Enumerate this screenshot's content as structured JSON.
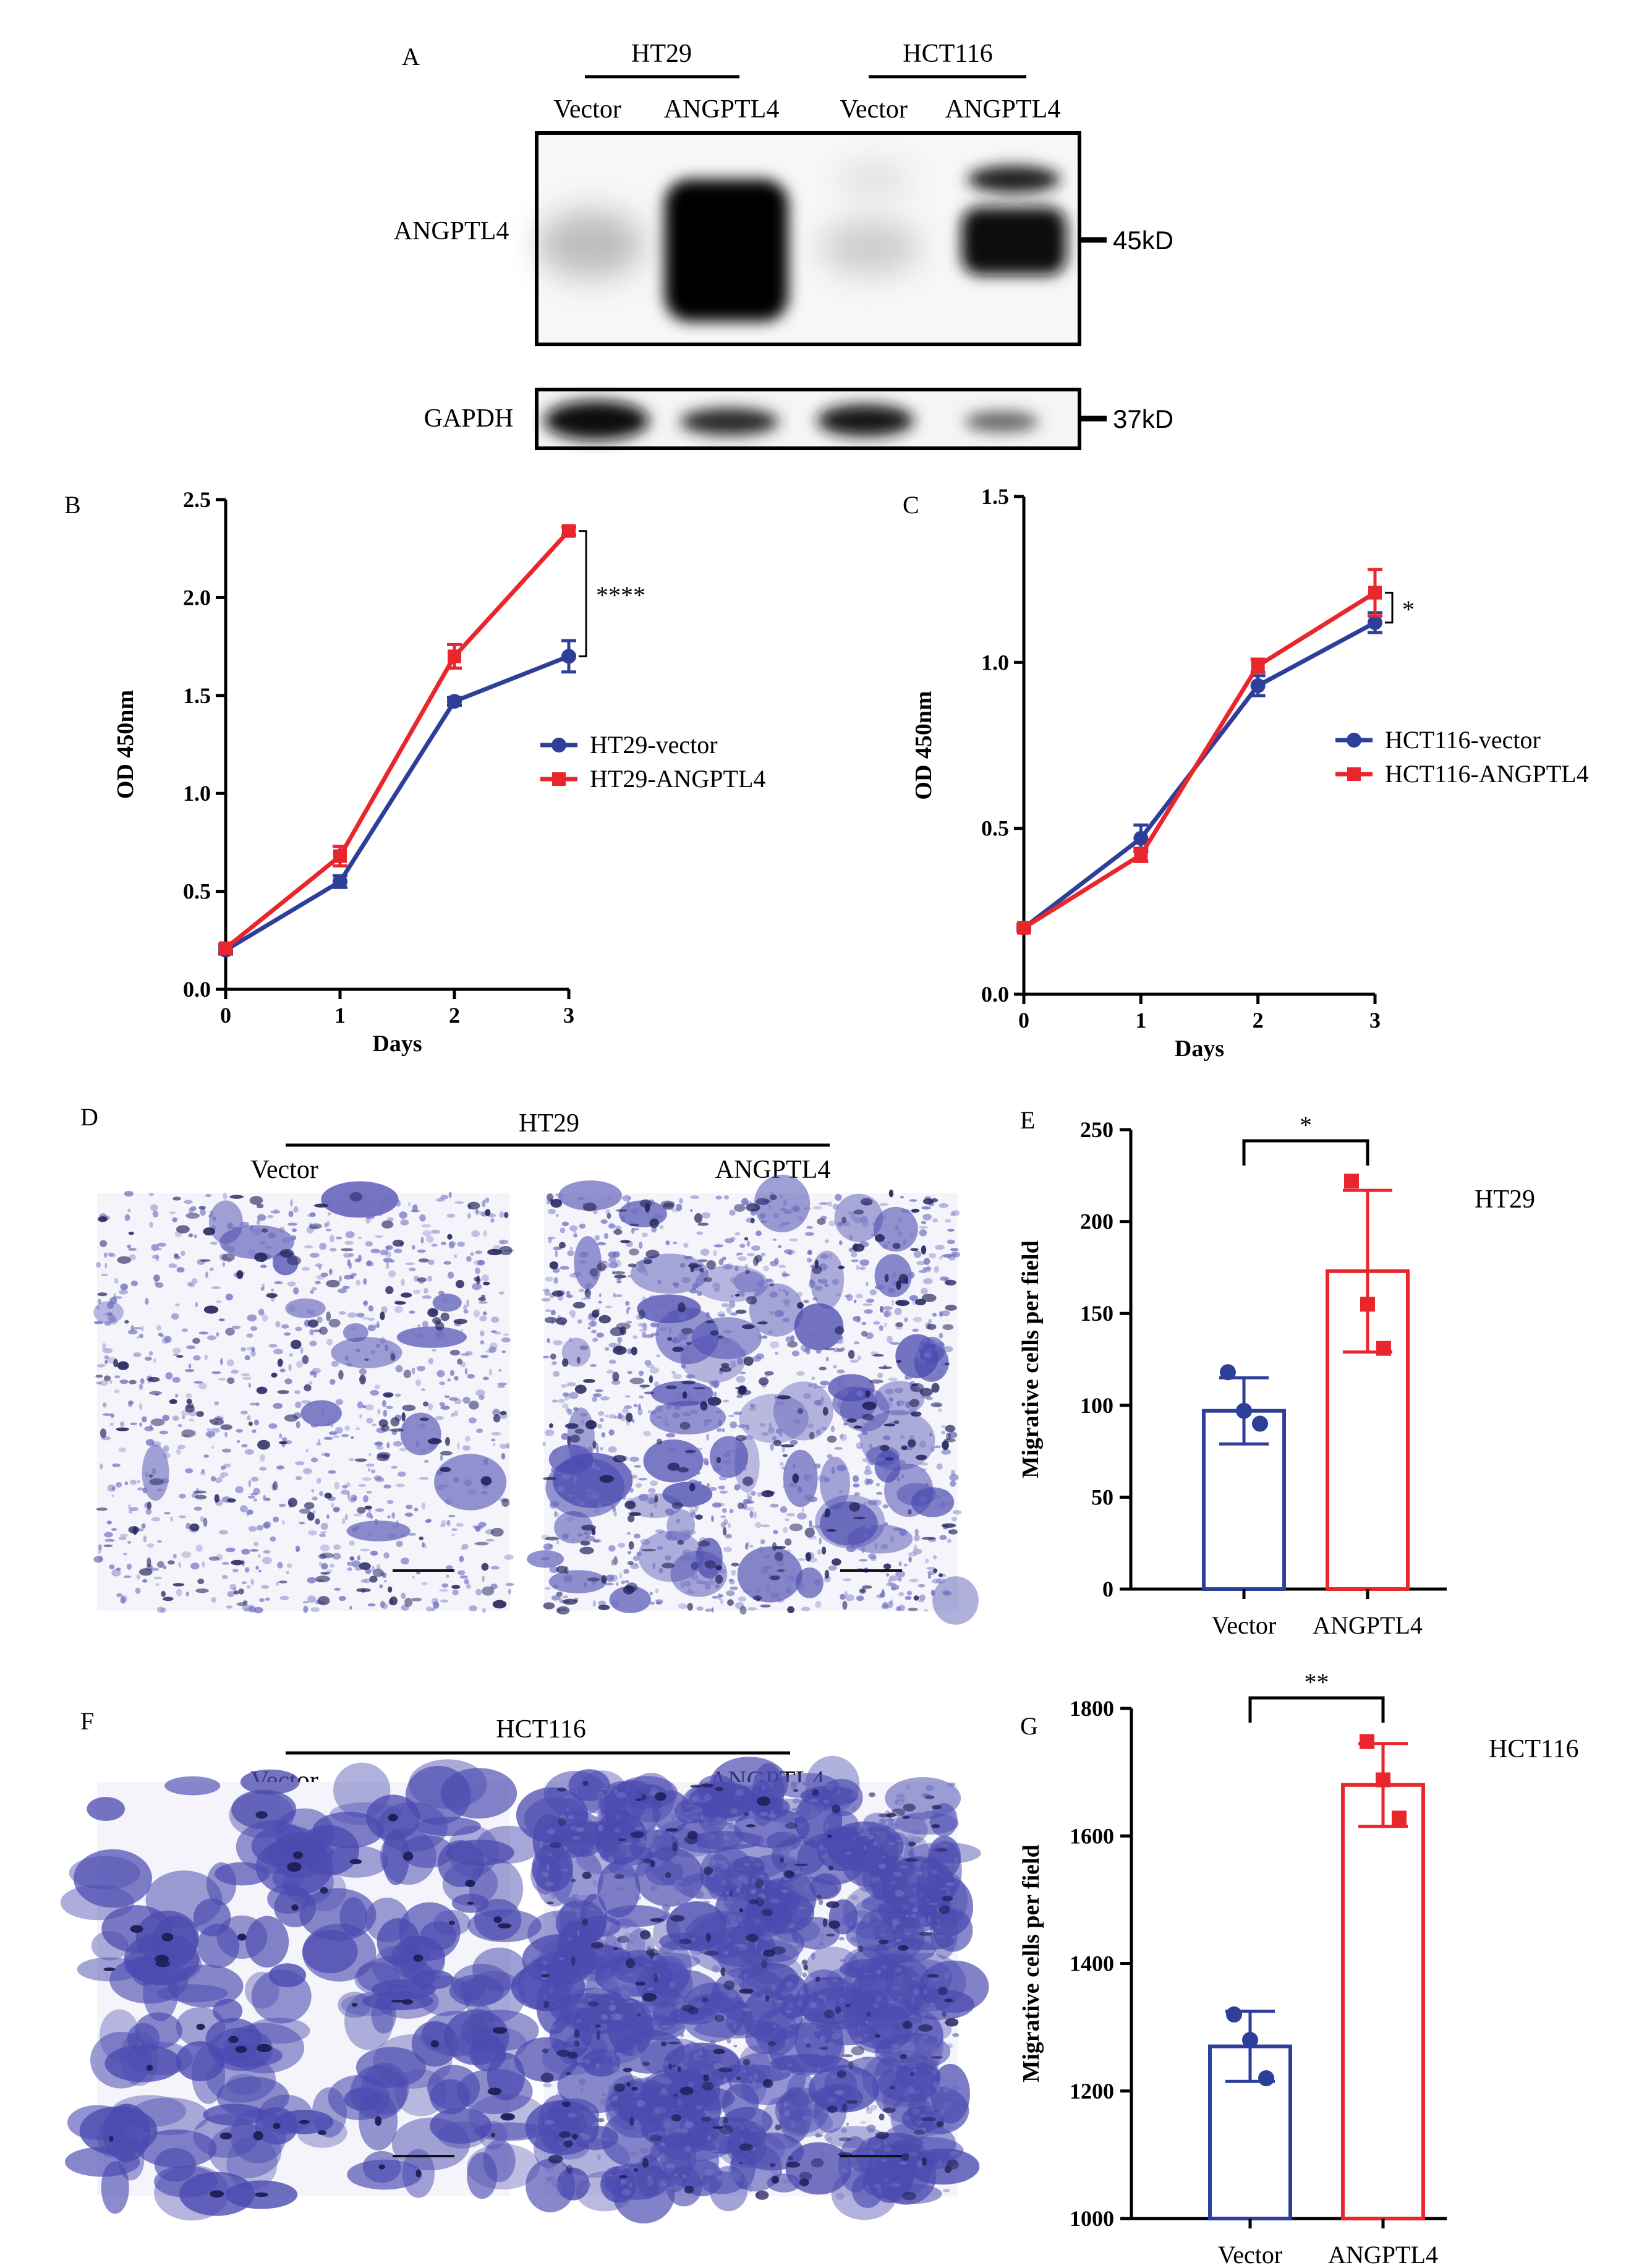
{
  "panel_labels": {
    "a": "A",
    "b": "B",
    "c": "C",
    "d": "D",
    "e": "E",
    "f": "F",
    "g": "G"
  },
  "blot": {
    "groups": [
      "HT29",
      "HCT116"
    ],
    "lanes": [
      "Vector",
      "ANGPTL4",
      "Vector",
      "ANGPTL4"
    ],
    "rows": [
      {
        "protein": "ANGPTL4",
        "size": "45kD"
      },
      {
        "protein": "GAPDH",
        "size": "37kD"
      }
    ]
  },
  "micrographs": [
    {
      "cell_line": "HT29",
      "left": "Vector",
      "right": "ANGPTL4"
    },
    {
      "cell_line": "HCT116",
      "left": "Vector",
      "right": "ANGPTL4"
    }
  ],
  "colors": {
    "vector": "#2e3f9a",
    "angptl4": "#e8262c",
    "stain": "#4a4ab0"
  },
  "chart_data": [
    {
      "id": "B",
      "type": "line",
      "xlabel": "Days",
      "ylabel": "OD 450nm",
      "x": [
        0,
        1,
        2,
        3
      ],
      "xticks": [
        "0",
        "1",
        "2",
        "3"
      ],
      "ylim": [
        0,
        2.5
      ],
      "yticks": [
        "0.0",
        "0.5",
        "1.0",
        "1.5",
        "2.0",
        "2.5"
      ],
      "series": [
        {
          "name": "HT29-vector",
          "values": [
            0.2,
            0.55,
            1.47,
            1.7
          ],
          "err": [
            0.02,
            0.03,
            0.02,
            0.08
          ]
        },
        {
          "name": "HT29-ANGPTL4",
          "values": [
            0.21,
            0.68,
            1.7,
            2.34
          ],
          "err": [
            0.02,
            0.05,
            0.06,
            0.02
          ]
        }
      ],
      "significance": "****"
    },
    {
      "id": "C",
      "type": "line",
      "xlabel": "Days",
      "ylabel": "OD 450nm",
      "x": [
        0,
        1,
        2,
        3
      ],
      "xticks": [
        "0",
        "1",
        "2",
        "3"
      ],
      "ylim": [
        0,
        1.5
      ],
      "yticks": [
        "0.0",
        "0.5",
        "1.0",
        "1.5"
      ],
      "series": [
        {
          "name": "HCT116-vector",
          "values": [
            0.2,
            0.47,
            0.93,
            1.12
          ],
          "err": [
            0.01,
            0.04,
            0.03,
            0.03
          ]
        },
        {
          "name": "HCT116-ANGPTL4",
          "values": [
            0.2,
            0.42,
            0.99,
            1.21
          ],
          "err": [
            0.01,
            0.02,
            0.02,
            0.07
          ]
        }
      ],
      "significance": "*"
    },
    {
      "id": "E",
      "type": "bar",
      "title": "HT29",
      "ylabel": "Migrative cells per field",
      "categories": [
        "Vector",
        "ANGPTL4"
      ],
      "values": [
        97,
        173
      ],
      "err": [
        18,
        44
      ],
      "points": [
        [
          118,
          97,
          90
        ],
        [
          222,
          155,
          131
        ]
      ],
      "ylim": [
        0,
        250
      ],
      "yticks": [
        "0",
        "50",
        "100",
        "150",
        "200",
        "250"
      ],
      "significance": "*"
    },
    {
      "id": "G",
      "type": "bar",
      "title": "HCT116",
      "ylabel": "Migrative cells per field",
      "categories": [
        "Vector",
        "ANGPTL4"
      ],
      "values": [
        1270,
        1680
      ],
      "err": [
        55,
        65
      ],
      "points": [
        [
          1320,
          1280,
          1220
        ],
        [
          1748,
          1688,
          1628
        ]
      ],
      "ylim": [
        1000,
        1800
      ],
      "yticks": [
        "1000",
        "1200",
        "1400",
        "1600",
        "1800"
      ],
      "significance": "**"
    }
  ]
}
